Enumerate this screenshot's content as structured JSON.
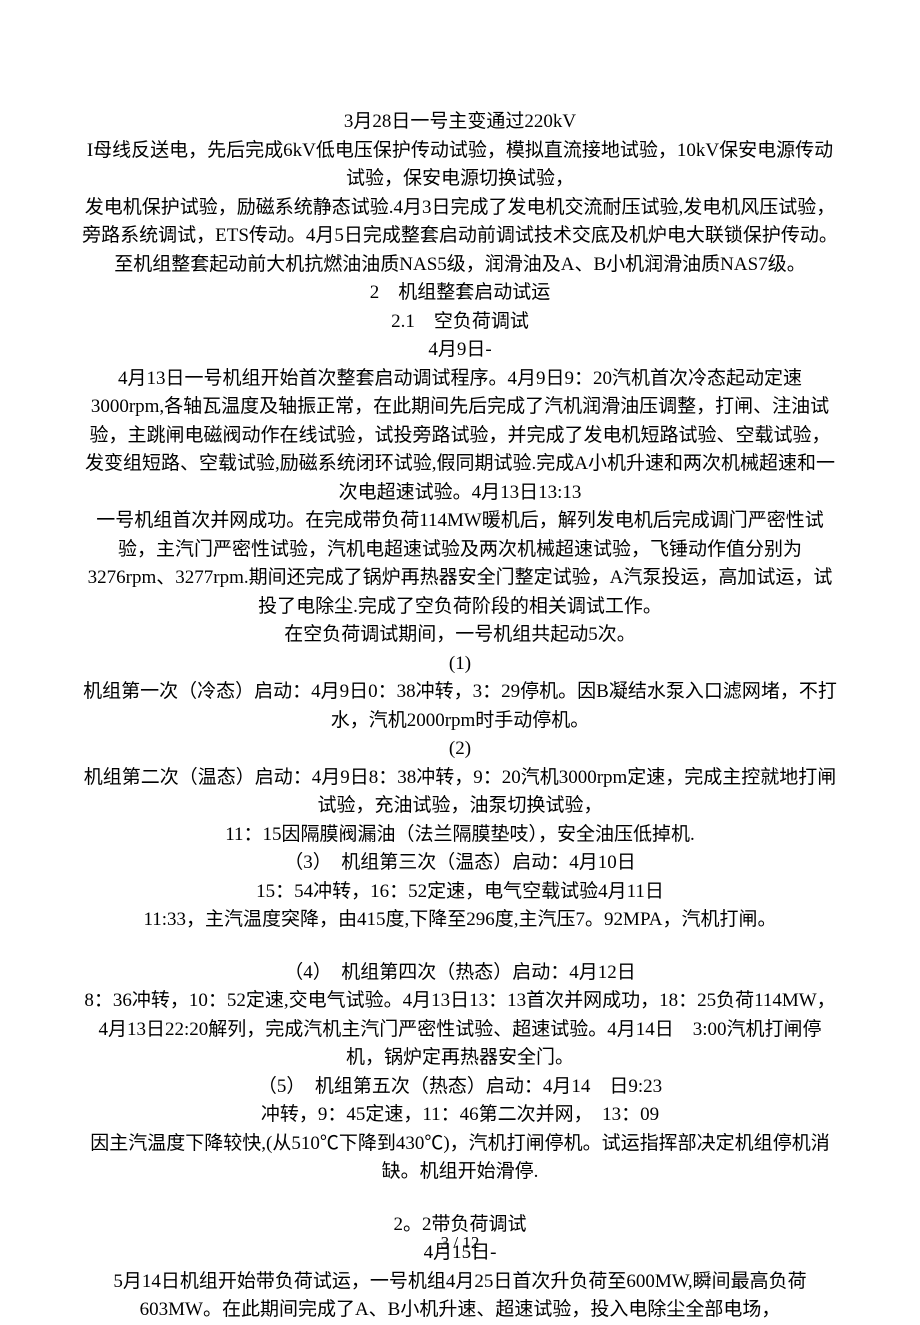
{
  "p1": "3月28日一号主变通过220kV",
  "p2": "I母线反送电，先后完成6kV低电压保护传动试验，模拟直流接地试验，10kV保安电源传动试验，保安电源切换试验，",
  "p3": "发电机保护试验，励磁系统静态试验.4月3日完成了发电机交流耐压试验,发电机风压试验，旁路系统调试，ETS传动。4月5日完成整套启动前调试技术交底及机炉电大联锁保护传动。至机组整套起动前大机抗燃油油质NAS5级，润滑油及A、B小机润滑油质NAS7级。",
  "p4": "2　机组整套启动试运",
  "p5": "2.1　空负荷调试",
  "p6": "4月9日-",
  "p7": "4月13日一号机组开始首次整套启动调试程序。4月9日9：20汽机首次冷态起动定速3000rpm,各轴瓦温度及轴振正常，在此期间先后完成了汽机润滑油压调整，打闸、注油试验，主跳闸电磁阀动作在线试验，试投旁路试验，并完成了发电机短路试验、空载试验，发变组短路、空载试验,励磁系统闭环试验,假同期试验.完成A小机升速和两次机械超速和一次电超速试验。4月13日13:13",
  "p8": "一号机组首次并网成功。在完成带负荷114MW暖机后，解列发电机后完成调门严密性试验，主汽门严密性试验，汽机电超速试验及两次机械超速试验，飞锤动作值分别为3276rpm、3277rpm.期间还完成了锅炉再热器安全门整定试验，A汽泵投运，高加试运，试投了电除尘.完成了空负荷阶段的相关调试工作。",
  "p9": "在空负荷调试期间，一号机组共起动5次。",
  "p10": "(1)",
  "p11": "机组第一次（冷态）启动：4月9日0：38冲转，3：29停机。因B凝结水泵入口滤网堵，不打水，汽机2000rpm时手动停机。",
  "p12": "(2)",
  "p13": "机组第二次（温态）启动：4月9日8：38冲转，9：20汽机3000rpm定速，完成主控就地打闸试验，充油试验，油泵切换试验，",
  "p14": "11：15因隔膜阀漏油（法兰隔膜垫吱），安全油压低掉机.",
  "p15": "（3）　机组第三次（温态）启动：4月10日",
  "p16": "15：54冲转，16：52定速，电气空载试验4月11日",
  "p17": "11:33，主汽温度突降，由415度,下降至296度,主汽压7。92MPA，汽机打闸。",
  "p18": "（4）　机组第四次（热态）启动：4月12日",
  "p19": "8：36冲转，10：52定速,交电气试验。4月13日13：13首次并网成功，18：25负荷114MW，4月13日22:20解列，完成汽机主汽门严密性试验、超速试验。4月14日　3:00汽机打闸停机，锅炉定再热器安全门。",
  "p20": "（5）　机组第五次（热态）启动：4月14　日9:23",
  "p21": "冲转，9：45定速，11：46第二次并网，　13：09",
  "p22": "因主汽温度下降较快,(从510℃下降到430℃)，汽机打闸停机。试运指挥部决定机组停机消缺。机组开始滑停.",
  "p23": "2。2带负荷调试",
  "p24": "4月15日-",
  "p25": "5月14日机组开始带负荷试运，一号机组4月25日首次升负荷至600MW,瞬间最高负荷603MW。在此期间完成了A、B小机升速、超速试验，投入电除尘全部电场，",
  "footer": "3 / 12"
}
